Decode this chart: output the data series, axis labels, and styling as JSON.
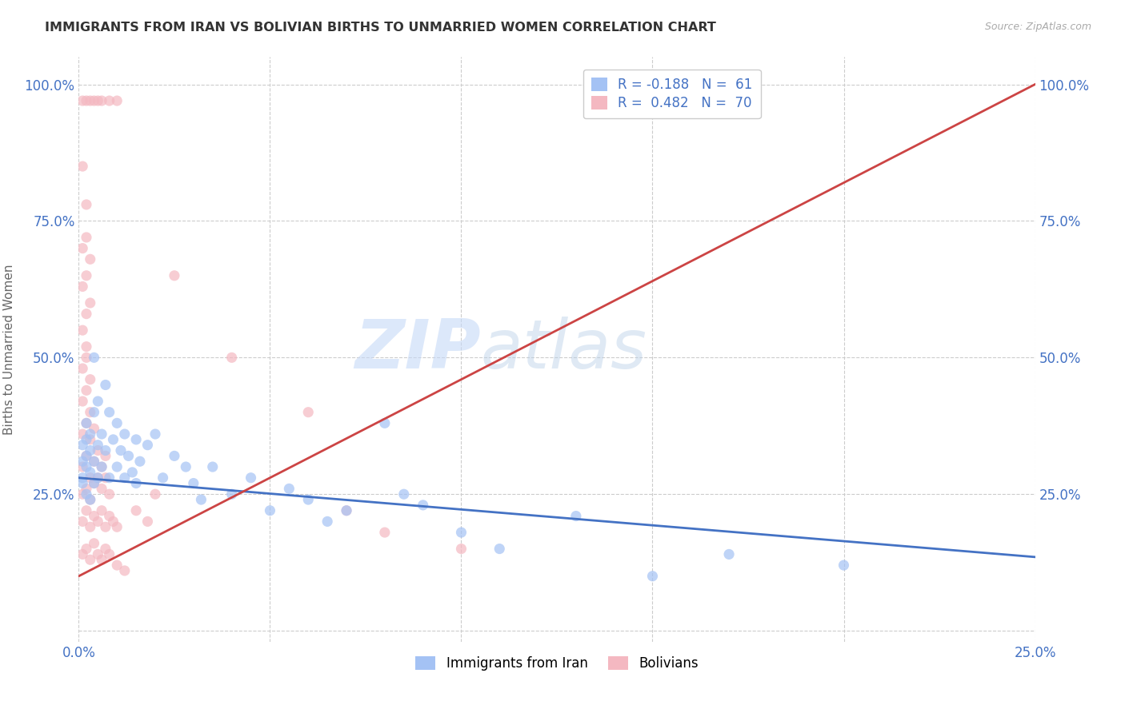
{
  "title": "IMMIGRANTS FROM IRAN VS BOLIVIAN BIRTHS TO UNMARRIED WOMEN CORRELATION CHART",
  "source": "Source: ZipAtlas.com",
  "ylabel": "Births to Unmarried Women",
  "xlim": [
    0.0,
    0.25
  ],
  "ylim": [
    -0.02,
    1.05
  ],
  "color_blue": "#a4c2f4",
  "color_pink": "#f4b8c1",
  "color_blue_line": "#4472c4",
  "color_pink_line": "#cc4444",
  "watermark_zip": "ZIP",
  "watermark_atlas": "atlas",
  "blue_scatter": [
    [
      0.001,
      0.28
    ],
    [
      0.001,
      0.31
    ],
    [
      0.001,
      0.34
    ],
    [
      0.001,
      0.27
    ],
    [
      0.002,
      0.3
    ],
    [
      0.002,
      0.35
    ],
    [
      0.002,
      0.25
    ],
    [
      0.002,
      0.32
    ],
    [
      0.002,
      0.38
    ],
    [
      0.003,
      0.29
    ],
    [
      0.003,
      0.36
    ],
    [
      0.003,
      0.24
    ],
    [
      0.003,
      0.33
    ],
    [
      0.004,
      0.31
    ],
    [
      0.004,
      0.4
    ],
    [
      0.004,
      0.27
    ],
    [
      0.004,
      0.5
    ],
    [
      0.005,
      0.34
    ],
    [
      0.005,
      0.28
    ],
    [
      0.005,
      0.42
    ],
    [
      0.006,
      0.36
    ],
    [
      0.006,
      0.3
    ],
    [
      0.007,
      0.45
    ],
    [
      0.007,
      0.33
    ],
    [
      0.008,
      0.4
    ],
    [
      0.008,
      0.28
    ],
    [
      0.009,
      0.35
    ],
    [
      0.01,
      0.38
    ],
    [
      0.01,
      0.3
    ],
    [
      0.011,
      0.33
    ],
    [
      0.012,
      0.36
    ],
    [
      0.012,
      0.28
    ],
    [
      0.013,
      0.32
    ],
    [
      0.014,
      0.29
    ],
    [
      0.015,
      0.35
    ],
    [
      0.015,
      0.27
    ],
    [
      0.016,
      0.31
    ],
    [
      0.018,
      0.34
    ],
    [
      0.02,
      0.36
    ],
    [
      0.022,
      0.28
    ],
    [
      0.025,
      0.32
    ],
    [
      0.028,
      0.3
    ],
    [
      0.03,
      0.27
    ],
    [
      0.032,
      0.24
    ],
    [
      0.035,
      0.3
    ],
    [
      0.04,
      0.25
    ],
    [
      0.045,
      0.28
    ],
    [
      0.05,
      0.22
    ],
    [
      0.055,
      0.26
    ],
    [
      0.06,
      0.24
    ],
    [
      0.065,
      0.2
    ],
    [
      0.07,
      0.22
    ],
    [
      0.08,
      0.38
    ],
    [
      0.085,
      0.25
    ],
    [
      0.09,
      0.23
    ],
    [
      0.1,
      0.18
    ],
    [
      0.11,
      0.15
    ],
    [
      0.13,
      0.21
    ],
    [
      0.15,
      0.1
    ],
    [
      0.17,
      0.14
    ],
    [
      0.2,
      0.12
    ]
  ],
  "pink_scatter": [
    [
      0.001,
      0.97
    ],
    [
      0.002,
      0.97
    ],
    [
      0.003,
      0.97
    ],
    [
      0.004,
      0.97
    ],
    [
      0.005,
      0.97
    ],
    [
      0.006,
      0.97
    ],
    [
      0.008,
      0.97
    ],
    [
      0.01,
      0.97
    ],
    [
      0.001,
      0.85
    ],
    [
      0.002,
      0.78
    ],
    [
      0.001,
      0.7
    ],
    [
      0.002,
      0.72
    ],
    [
      0.003,
      0.68
    ],
    [
      0.001,
      0.63
    ],
    [
      0.002,
      0.65
    ],
    [
      0.001,
      0.55
    ],
    [
      0.002,
      0.58
    ],
    [
      0.003,
      0.6
    ],
    [
      0.001,
      0.48
    ],
    [
      0.002,
      0.5
    ],
    [
      0.002,
      0.52
    ],
    [
      0.001,
      0.42
    ],
    [
      0.002,
      0.44
    ],
    [
      0.003,
      0.46
    ],
    [
      0.003,
      0.4
    ],
    [
      0.001,
      0.36
    ],
    [
      0.002,
      0.38
    ],
    [
      0.003,
      0.35
    ],
    [
      0.004,
      0.37
    ],
    [
      0.001,
      0.3
    ],
    [
      0.002,
      0.32
    ],
    [
      0.003,
      0.28
    ],
    [
      0.004,
      0.31
    ],
    [
      0.005,
      0.33
    ],
    [
      0.006,
      0.3
    ],
    [
      0.007,
      0.32
    ],
    [
      0.001,
      0.25
    ],
    [
      0.002,
      0.26
    ],
    [
      0.003,
      0.24
    ],
    [
      0.004,
      0.27
    ],
    [
      0.005,
      0.28
    ],
    [
      0.006,
      0.26
    ],
    [
      0.007,
      0.28
    ],
    [
      0.008,
      0.25
    ],
    [
      0.001,
      0.2
    ],
    [
      0.002,
      0.22
    ],
    [
      0.003,
      0.19
    ],
    [
      0.004,
      0.21
    ],
    [
      0.005,
      0.2
    ],
    [
      0.006,
      0.22
    ],
    [
      0.007,
      0.19
    ],
    [
      0.008,
      0.21
    ],
    [
      0.009,
      0.2
    ],
    [
      0.01,
      0.19
    ],
    [
      0.001,
      0.14
    ],
    [
      0.002,
      0.15
    ],
    [
      0.003,
      0.13
    ],
    [
      0.004,
      0.16
    ],
    [
      0.005,
      0.14
    ],
    [
      0.006,
      0.13
    ],
    [
      0.007,
      0.15
    ],
    [
      0.008,
      0.14
    ],
    [
      0.01,
      0.12
    ],
    [
      0.012,
      0.11
    ],
    [
      0.015,
      0.22
    ],
    [
      0.018,
      0.2
    ],
    [
      0.02,
      0.25
    ],
    [
      0.025,
      0.65
    ],
    [
      0.04,
      0.5
    ],
    [
      0.06,
      0.4
    ],
    [
      0.07,
      0.22
    ],
    [
      0.08,
      0.18
    ],
    [
      0.1,
      0.15
    ]
  ],
  "blue_line_x": [
    0.0,
    0.25
  ],
  "blue_line_y": [
    0.28,
    0.135
  ],
  "pink_line_x": [
    0.0,
    0.25
  ],
  "pink_line_y": [
    0.1,
    1.0
  ]
}
